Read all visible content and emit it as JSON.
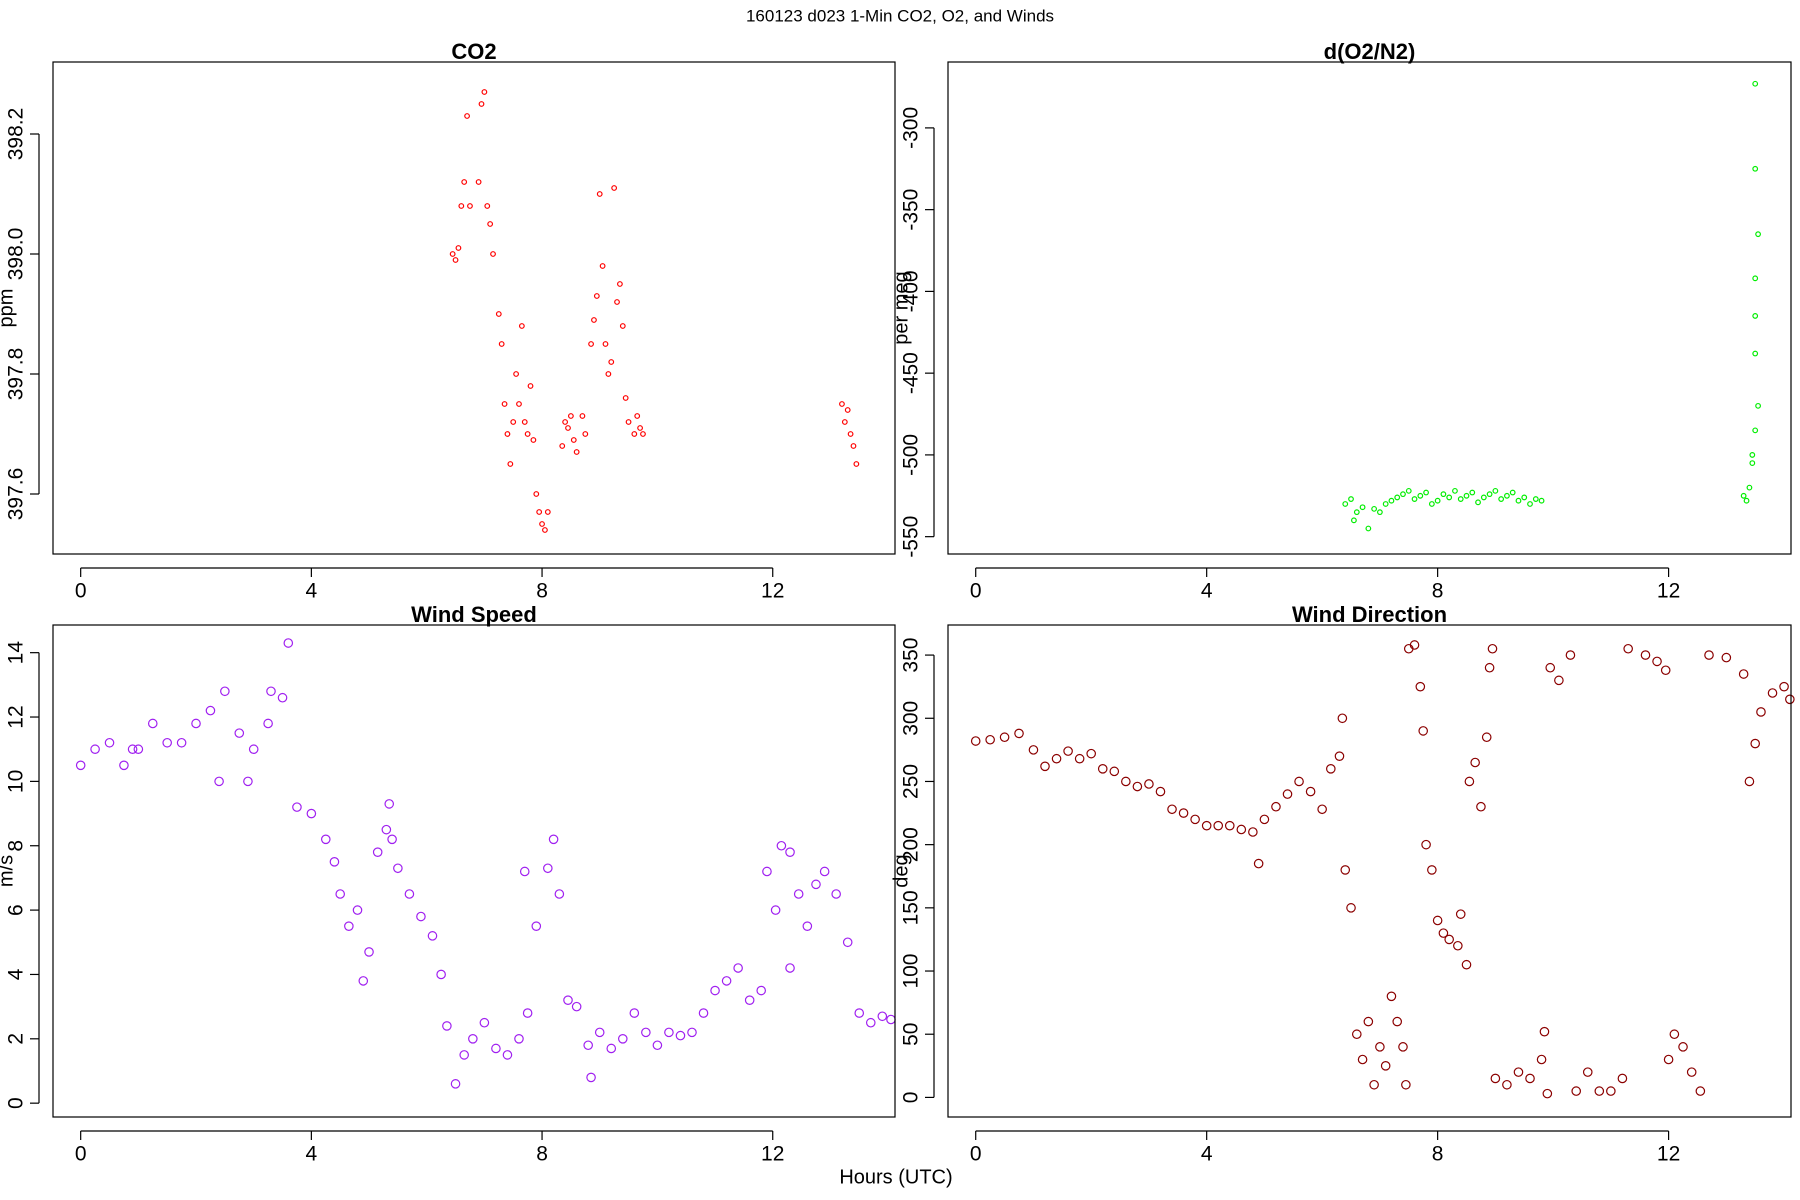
{
  "title": "160123   d023   1-Min CO2, O2, and Winds",
  "xlabel": "Hours (UTC)",
  "chart_data": [
    {
      "type": "scatter",
      "title": "CO2",
      "ylabel": "ppm",
      "color": "#ff0000",
      "xlim": [
        -0.48,
        14.12
      ],
      "ylim": [
        397.5,
        398.32
      ],
      "xticks": [
        0,
        4,
        8,
        12
      ],
      "yticks": [
        397.6,
        397.8,
        {
          "value": 398,
          "label": "398.0"
        },
        398.2
      ],
      "x": [
        6.45,
        6.5,
        6.55,
        6.6,
        6.65,
        6.7,
        6.75,
        6.9,
        6.95,
        7.0,
        7.05,
        7.1,
        7.15,
        7.25,
        7.3,
        7.35,
        7.4,
        7.45,
        7.5,
        7.55,
        7.6,
        7.65,
        7.7,
        7.75,
        7.8,
        7.85,
        7.9,
        7.95,
        8.0,
        8.05,
        8.1,
        8.35,
        8.4,
        8.45,
        8.5,
        8.55,
        8.6,
        8.7,
        8.75,
        8.85,
        8.9,
        8.95,
        9.0,
        9.05,
        9.1,
        9.15,
        9.2,
        9.25,
        9.3,
        9.35,
        9.4,
        9.45,
        9.5,
        9.6,
        9.65,
        9.7,
        9.75,
        13.2,
        13.25,
        13.3,
        13.35,
        13.4,
        13.45
      ],
      "values": [
        398.0,
        397.99,
        398.01,
        398.08,
        398.12,
        398.23,
        398.08,
        398.12,
        398.25,
        398.27,
        398.08,
        398.05,
        398.0,
        397.9,
        397.85,
        397.75,
        397.7,
        397.65,
        397.72,
        397.8,
        397.75,
        397.88,
        397.72,
        397.7,
        397.78,
        397.69,
        397.6,
        397.57,
        397.55,
        397.54,
        397.57,
        397.68,
        397.72,
        397.71,
        397.73,
        397.69,
        397.67,
        397.73,
        397.7,
        397.85,
        397.89,
        397.93,
        398.1,
        397.98,
        397.85,
        397.8,
        397.82,
        398.11,
        397.92,
        397.95,
        397.88,
        397.76,
        397.72,
        397.7,
        397.73,
        397.71,
        397.7,
        397.75,
        397.72,
        397.74,
        397.7,
        397.68,
        397.65
      ]
    },
    {
      "type": "scatter",
      "title": "d(O2/N2)",
      "ylabel": "per meg",
      "color": "#00ee00",
      "xlim": [
        -0.48,
        14.12
      ],
      "ylim": [
        -560.6,
        -259.7
      ],
      "xticks": [
        0,
        4,
        8,
        12
      ],
      "yticks": [
        -550,
        -500,
        -450,
        -400,
        -350,
        -300
      ],
      "x": [
        6.4,
        6.5,
        6.55,
        6.6,
        6.7,
        6.8,
        6.9,
        7.0,
        7.1,
        7.2,
        7.3,
        7.4,
        7.5,
        7.6,
        7.7,
        7.8,
        7.9,
        8.0,
        8.1,
        8.2,
        8.3,
        8.4,
        8.5,
        8.6,
        8.7,
        8.8,
        8.9,
        9.0,
        9.1,
        9.2,
        9.3,
        9.4,
        9.5,
        9.6,
        9.7,
        9.8,
        13.3,
        13.35,
        13.4,
        13.45,
        13.5,
        13.55,
        13.5,
        13.5,
        13.5,
        13.55,
        13.5,
        13.45,
        13.5
      ],
      "values": [
        -530,
        -527,
        -540,
        -535,
        -532,
        -545,
        -533,
        -535,
        -530,
        -528,
        -526,
        -524,
        -522,
        -527,
        -525,
        -523,
        -530,
        -528,
        -524,
        -526,
        -522,
        -527,
        -525,
        -523,
        -529,
        -526,
        -524,
        -522,
        -527,
        -525,
        -523,
        -528,
        -526,
        -530,
        -527,
        -528,
        -525,
        -528,
        -520,
        -505,
        -485,
        -470,
        -438,
        -415,
        -392,
        -365,
        -325,
        -500,
        -273
      ]
    },
    {
      "type": "scatter",
      "title": "Wind Speed",
      "ylabel": "m/s",
      "color": "#a020f0",
      "xlim": [
        -0.48,
        14.12
      ],
      "ylim": [
        -0.43,
        14.86
      ],
      "xticks": [
        0,
        4,
        8,
        12
      ],
      "yticks": [
        0,
        2,
        4,
        6,
        8,
        10,
        12,
        14
      ],
      "x": [
        0,
        0.25,
        0.5,
        0.75,
        0.9,
        1.0,
        1.25,
        1.5,
        1.75,
        2.0,
        2.25,
        2.4,
        2.5,
        2.75,
        2.9,
        3.0,
        3.25,
        3.3,
        3.5,
        3.6,
        3.75,
        4.0,
        4.25,
        4.4,
        4.5,
        4.65,
        4.8,
        4.9,
        5.0,
        5.15,
        5.3,
        5.35,
        5.4,
        5.5,
        5.7,
        5.9,
        6.1,
        6.25,
        6.35,
        6.5,
        6.65,
        6.8,
        7.0,
        7.2,
        7.4,
        7.6,
        7.7,
        7.75,
        7.9,
        8.1,
        8.2,
        8.3,
        8.45,
        8.6,
        8.8,
        8.85,
        9.0,
        9.2,
        9.4,
        9.6,
        9.8,
        10.0,
        10.2,
        10.4,
        10.6,
        10.8,
        11.0,
        11.2,
        11.4,
        11.6,
        11.8,
        11.9,
        12.05,
        12.15,
        12.3,
        12.3,
        12.45,
        12.6,
        12.75,
        12.9,
        13.1,
        13.3,
        13.5,
        13.7,
        13.9,
        14.05
      ],
      "values": [
        10.5,
        11,
        11.2,
        10.5,
        11.0,
        11,
        11.8,
        11.2,
        11.2,
        11.8,
        12.2,
        10.0,
        12.8,
        11.5,
        10.0,
        11.0,
        11.8,
        12.8,
        12.6,
        14.3,
        9.2,
        9.0,
        8.2,
        7.5,
        6.5,
        5.5,
        6.0,
        3.8,
        4.7,
        7.8,
        8.5,
        9.3,
        8.2,
        7.3,
        6.5,
        5.8,
        5.2,
        4.0,
        2.4,
        0.6,
        1.5,
        2.0,
        2.5,
        1.7,
        1.5,
        2.0,
        7.2,
        2.8,
        5.5,
        7.3,
        8.2,
        6.5,
        3.2,
        3.0,
        1.8,
        0.8,
        2.2,
        1.7,
        2.0,
        2.8,
        2.2,
        1.8,
        2.2,
        2.1,
        2.2,
        2.8,
        3.5,
        3.8,
        4.2,
        3.2,
        3.5,
        7.2,
        6.0,
        8.0,
        7.8,
        4.2,
        6.5,
        5.5,
        6.8,
        7.2,
        6.5,
        5.0,
        2.8,
        2.5,
        2.7,
        2.6
      ]
    },
    {
      "type": "scatter",
      "title": "Wind Direction",
      "ylabel": "deg",
      "color": "#8b0000",
      "xlim": [
        -0.48,
        14.12
      ],
      "ylim": [
        -15.5,
        373.8
      ],
      "xticks": [
        0,
        4,
        8,
        12
      ],
      "yticks": [
        0,
        50,
        100,
        150,
        200,
        250,
        300,
        350
      ],
      "x": [
        0,
        0.25,
        0.5,
        0.75,
        1.0,
        1.2,
        1.4,
        1.6,
        1.8,
        2.0,
        2.2,
        2.4,
        2.6,
        2.8,
        3.0,
        3.2,
        3.4,
        3.6,
        3.8,
        4.0,
        4.2,
        4.4,
        4.6,
        4.8,
        4.9,
        5.0,
        5.2,
        5.4,
        5.6,
        5.8,
        6.0,
        6.15,
        6.3,
        6.35,
        6.4,
        6.5,
        6.6,
        6.7,
        6.8,
        6.9,
        7.0,
        7.1,
        7.2,
        7.3,
        7.4,
        7.45,
        7.5,
        7.6,
        7.7,
        7.75,
        7.8,
        7.9,
        8.0,
        8.1,
        8.2,
        8.35,
        8.4,
        8.5,
        8.55,
        8.65,
        8.75,
        8.85,
        8.9,
        8.95,
        9.0,
        9.2,
        9.4,
        9.6,
        9.8,
        9.85,
        9.9,
        9.95,
        10.1,
        10.3,
        10.4,
        10.6,
        10.8,
        11.0,
        11.2,
        11.3,
        11.6,
        11.8,
        11.95,
        12.0,
        12.1,
        12.25,
        12.4,
        12.55,
        12.7,
        13.0,
        13.3,
        13.4,
        13.5,
        13.6,
        13.8,
        14.0,
        14.1
      ],
      "values": [
        282,
        283,
        285,
        288,
        275,
        262,
        268,
        274,
        268,
        272,
        260,
        258,
        250,
        246,
        248,
        242,
        228,
        225,
        220,
        215,
        215,
        215,
        212,
        210,
        185,
        220,
        230,
        240,
        250,
        242,
        228,
        260,
        270,
        300,
        180,
        150,
        50,
        30,
        60,
        10,
        40,
        25,
        80,
        60,
        40,
        10,
        355,
        358,
        325,
        290,
        200,
        180,
        140,
        130,
        125,
        120,
        145,
        105,
        250,
        265,
        230,
        285,
        340,
        355,
        15,
        10,
        20,
        15,
        30,
        52,
        3,
        340,
        330,
        350,
        5,
        20,
        5,
        5,
        15,
        355,
        350,
        345,
        338,
        30,
        50,
        40,
        20,
        5,
        350,
        348,
        335,
        250,
        280,
        305,
        320,
        325,
        315
      ]
    }
  ]
}
